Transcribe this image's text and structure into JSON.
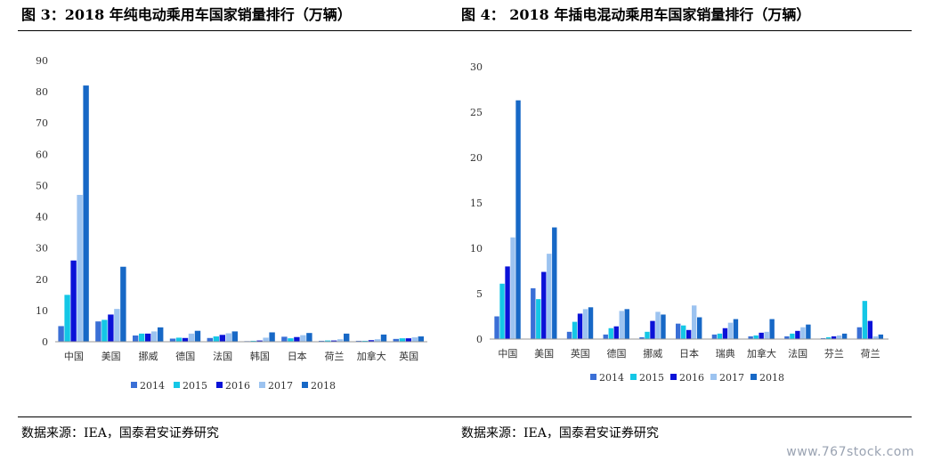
{
  "figures": {
    "left_title": "图 3：2018 年纯电动乘用车国家销量排行（万辆）",
    "right_title": "图 4： 2018 年插电混动乘用车国家销量排行（万辆）",
    "left_source": "数据来源：IEA，国泰君安证券研究",
    "right_source": "数据来源：IEA，国泰君安证券研究"
  },
  "watermark": "www.767stock.com",
  "colors": {
    "2014": "#3a6fd6",
    "2015": "#14c7e6",
    "2016": "#0a12d8",
    "2017": "#9cc3f0",
    "2018": "#1768c6"
  },
  "chart_data": [
    {
      "type": "bar",
      "categories": [
        "中国",
        "美国",
        "挪威",
        "德国",
        "法国",
        "韩国",
        "日本",
        "荷兰",
        "加拿大",
        "英国"
      ],
      "series": [
        {
          "name": "2014",
          "values": [
            5,
            6.5,
            2,
            1,
            1.2,
            0.2,
            1.6,
            0.3,
            0.3,
            0.9
          ]
        },
        {
          "name": "2015",
          "values": [
            15,
            7,
            2.6,
            1.3,
            1.7,
            0.3,
            1.1,
            0.4,
            0.3,
            1.1
          ]
        },
        {
          "name": "2016",
          "values": [
            26,
            8.7,
            2.6,
            1.2,
            2.2,
            0.4,
            1.5,
            0.4,
            0.5,
            1.1
          ]
        },
        {
          "name": "2017",
          "values": [
            47,
            10.5,
            3.3,
            2.6,
            2.7,
            1.3,
            2.1,
            0.8,
            0.8,
            1.4
          ]
        },
        {
          "name": "2018",
          "values": [
            82,
            24,
            4.6,
            3.5,
            3.3,
            3,
            2.8,
            2.6,
            2.3,
            1.7
          ]
        }
      ],
      "ylim": [
        0,
        90
      ],
      "yticks": [
        0,
        10,
        20,
        30,
        40,
        50,
        60,
        70,
        80,
        90
      ],
      "legend": "bottom",
      "grid": false
    },
    {
      "type": "bar",
      "categories": [
        "中国",
        "美国",
        "英国",
        "德国",
        "挪威",
        "日本",
        "瑞典",
        "加拿大",
        "法国",
        "芬兰",
        "荷兰"
      ],
      "series": [
        {
          "name": "2014",
          "values": [
            2.5,
            5.6,
            0.8,
            0.5,
            0.2,
            1.7,
            0.5,
            0.3,
            0.3,
            0.1,
            1.3
          ]
        },
        {
          "name": "2015",
          "values": [
            6.1,
            4.4,
            1.9,
            1.2,
            0.8,
            1.5,
            0.6,
            0.4,
            0.6,
            0.2,
            4.2
          ]
        },
        {
          "name": "2016",
          "values": [
            8,
            7.4,
            2.8,
            1.4,
            2,
            1,
            1.2,
            0.7,
            0.9,
            0.3,
            2
          ]
        },
        {
          "name": "2017",
          "values": [
            11.2,
            9.4,
            3.3,
            3.1,
            3,
            3.7,
            1.8,
            0.8,
            1.3,
            0.4,
            0.3
          ]
        },
        {
          "name": "2018",
          "values": [
            26.3,
            12.3,
            3.5,
            3.3,
            2.7,
            2.4,
            2.2,
            2.2,
            1.6,
            0.6,
            0.5
          ]
        }
      ],
      "ylim": [
        0,
        30
      ],
      "yticks": [
        0,
        5,
        10,
        15,
        20,
        25,
        30
      ],
      "legend": "bottom",
      "grid": false
    }
  ]
}
